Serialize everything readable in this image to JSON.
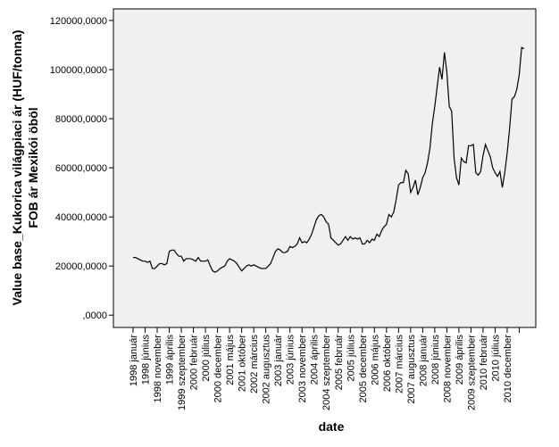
{
  "chart_data": {
    "type": "line",
    "x_label": "date",
    "y_label": [
      "Value base_Kukorica világpiaci ár (HUF/tonna)",
      "FOB ár Mexikói öböl"
    ],
    "categories": [
      "1998 január",
      null,
      null,
      null,
      null,
      "1998 június",
      null,
      null,
      null,
      null,
      "1998 november",
      null,
      null,
      null,
      null,
      "1999 április",
      null,
      null,
      null,
      null,
      "1999 szeptember",
      null,
      null,
      null,
      null,
      "2000 február",
      null,
      null,
      null,
      null,
      "2000 július",
      null,
      null,
      null,
      null,
      "2000 december",
      null,
      null,
      null,
      null,
      "2001 május",
      null,
      null,
      null,
      null,
      "2001 október",
      null,
      null,
      null,
      null,
      "2002 március",
      null,
      null,
      null,
      null,
      "2002 augusztus",
      null,
      null,
      null,
      null,
      "2003 január",
      null,
      null,
      null,
      null,
      "2003 június",
      null,
      null,
      null,
      null,
      "2003 november",
      null,
      null,
      null,
      null,
      "2004 április",
      null,
      null,
      null,
      null,
      "2004 szeptember",
      null,
      null,
      null,
      null,
      "2005 február",
      null,
      null,
      null,
      null,
      "2005 július",
      null,
      null,
      null,
      null,
      "2005 december",
      null,
      null,
      null,
      null,
      "2006 május",
      null,
      null,
      null,
      null,
      "2006 október",
      null,
      null,
      null,
      null,
      "2007 március",
      null,
      null,
      null,
      null,
      "2007 augusztus",
      null,
      null,
      null,
      null,
      "2008 január",
      null,
      null,
      null,
      null,
      "2008 június",
      null,
      null,
      null,
      null,
      "2008 november",
      null,
      null,
      null,
      null,
      "2009 április",
      null,
      null,
      null,
      null,
      "2009 szeptember",
      null,
      null,
      null,
      null,
      "2010 február",
      null,
      null,
      null,
      null,
      "2010 július",
      null,
      null,
      null,
      null,
      "2010 december",
      null,
      null,
      null,
      null,
      null,
      null,
      null
    ],
    "values": [
      23500,
      23500,
      23000,
      22500,
      22000,
      22000,
      21500,
      22000,
      19000,
      19000,
      20000,
      21000,
      21000,
      20500,
      21000,
      26000,
      26500,
      26500,
      25000,
      24000,
      24000,
      22000,
      23000,
      23000,
      23000,
      22500,
      22000,
      23500,
      22000,
      22000,
      22000,
      22500,
      20000,
      18000,
      17500,
      18000,
      19000,
      19500,
      20000,
      22000,
      23000,
      22500,
      22000,
      21000,
      19500,
      18000,
      19000,
      20000,
      20500,
      20000,
      20500,
      20000,
      19500,
      19000,
      19000,
      19000,
      20000,
      21000,
      23500,
      26000,
      27000,
      26500,
      25500,
      25500,
      26000,
      28000,
      27500,
      28000,
      29000,
      31500,
      29500,
      30000,
      29500,
      31000,
      33000,
      36000,
      39000,
      40500,
      41000,
      40000,
      38000,
      37000,
      31500,
      30500,
      29500,
      28500,
      29000,
      30500,
      32000,
      30500,
      32000,
      31000,
      31500,
      31000,
      31500,
      29000,
      29000,
      30500,
      29500,
      31000,
      30500,
      33000,
      32000,
      34500,
      36000,
      37000,
      41000,
      40000,
      42000,
      47000,
      53000,
      54000,
      54000,
      59000,
      57500,
      50000,
      52000,
      55000,
      49000,
      52000,
      56000,
      58000,
      62000,
      68000,
      78000,
      85000,
      93000,
      101000,
      96000,
      107000,
      99000,
      85000,
      83000,
      64000,
      56000,
      53000,
      64000,
      62500,
      62000,
      69000,
      69000,
      69500,
      58000,
      57000,
      58500,
      65000,
      69500,
      67000,
      64500,
      60000,
      58000,
      56500,
      58500,
      52000,
      58000,
      66000,
      76000,
      88000,
      89000,
      92000,
      98000,
      109000,
      108500
    ],
    "color": "#000000",
    "ylim": [
      -5000,
      124700
    ],
    "yticks": [
      {
        "value": 0,
        "label": ",0000"
      },
      {
        "value": 20000,
        "label": "20000,0000"
      },
      {
        "value": 40000,
        "label": "40000,0000"
      },
      {
        "value": 60000,
        "label": "60000,0000"
      },
      {
        "value": 80000,
        "label": "80000,0000"
      },
      {
        "value": 100000,
        "label": "100000,0000"
      },
      {
        "value": 120000,
        "label": "120000,0000"
      }
    ]
  }
}
